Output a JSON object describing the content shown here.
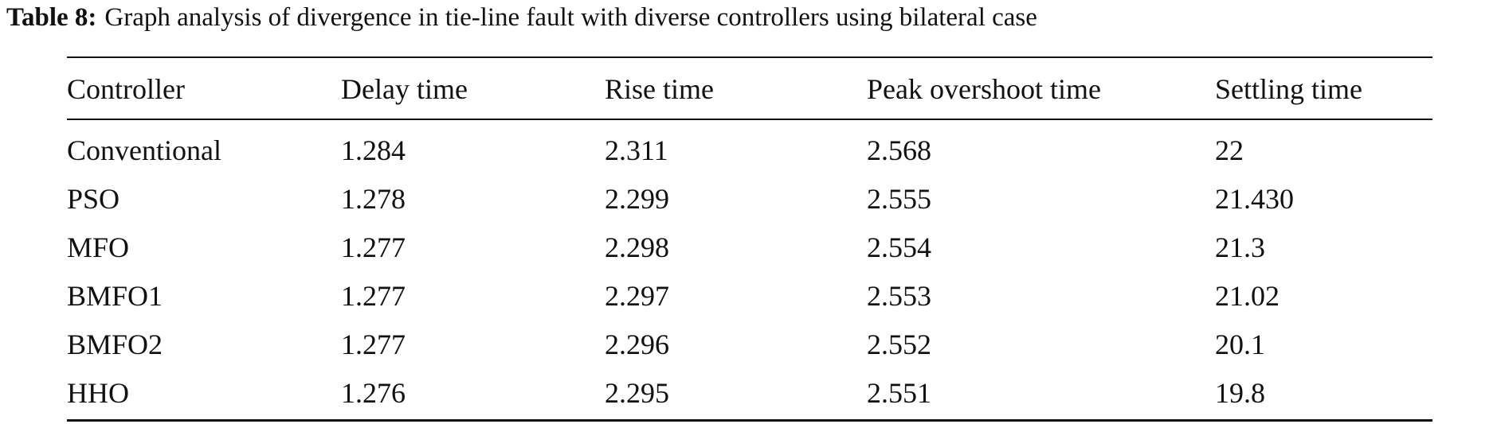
{
  "caption": {
    "label": "Table 8:",
    "text": "Graph analysis of divergence in tie-line fault with diverse controllers using bilateral case"
  },
  "table": {
    "header": [
      "Controller",
      "Delay time",
      "Rise time",
      "Peak overshoot time",
      "Settling time"
    ],
    "rows": [
      [
        "Conventional",
        "1.284",
        "2.311",
        "2.568",
        "22"
      ],
      [
        "PSO",
        "1.278",
        "2.299",
        "2.555",
        "21.430"
      ],
      [
        "MFO",
        "1.277",
        "2.298",
        "2.554",
        "21.3"
      ],
      [
        "BMFO1",
        "1.277",
        "2.297",
        "2.553",
        "21.02"
      ],
      [
        "BMFO2",
        "1.277",
        "2.296",
        "2.552",
        "20.1"
      ],
      [
        "HHO",
        "1.276",
        "2.295",
        "2.551",
        "19.8"
      ]
    ]
  }
}
